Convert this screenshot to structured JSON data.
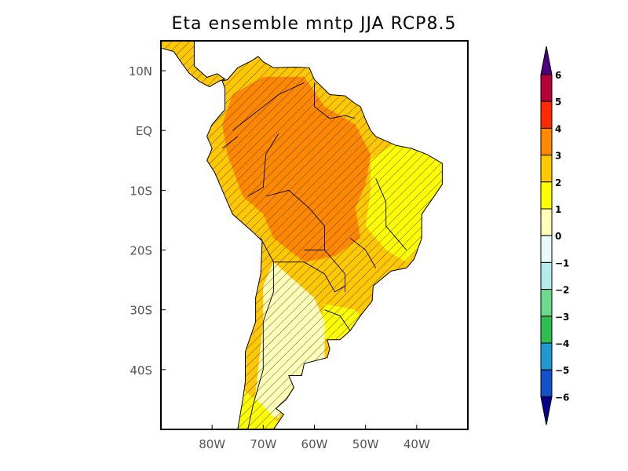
{
  "title": "Eta ensemble mntp JJA RCP8.5",
  "map": {
    "lon_range": [
      -90,
      -30
    ],
    "lat_range": [
      -50,
      15
    ],
    "lon_ticks": [
      {
        "value": -80,
        "label": "80W"
      },
      {
        "value": -70,
        "label": "70W"
      },
      {
        "value": -60,
        "label": "60W"
      },
      {
        "value": -50,
        "label": "50W"
      },
      {
        "value": -40,
        "label": "40W"
      }
    ],
    "lat_ticks": [
      {
        "value": 10,
        "label": "10N"
      },
      {
        "value": 0,
        "label": "EQ"
      },
      {
        "value": -10,
        "label": "10S"
      },
      {
        "value": -20,
        "label": "20S"
      },
      {
        "value": -30,
        "label": "30S"
      },
      {
        "value": -40,
        "label": "40S"
      }
    ],
    "hatching": "significance"
  },
  "colorbar": {
    "labels": [
      "6",
      "5",
      "4",
      "3",
      "2",
      "1",
      "0",
      "−1",
      "−2",
      "−3",
      "−4",
      "−5",
      "−6"
    ],
    "top_arrow_color": "#4b0082",
    "bottom_arrow_color": "#00008b",
    "colors": [
      "#b5003a",
      "#ff2a00",
      "#ff8800",
      "#ffc800",
      "#ffff00",
      "#ffffb8",
      "#e8fafa",
      "#b4ecec",
      "#6cd98c",
      "#2fbf50",
      "#1e9ad0",
      "#1450c8"
    ]
  }
}
